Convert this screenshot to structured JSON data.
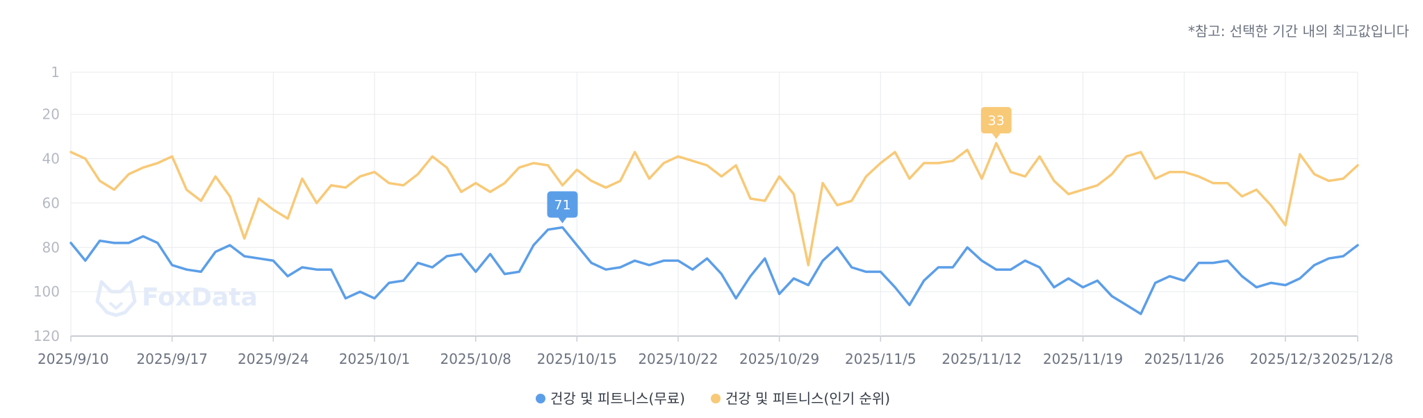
{
  "note": "*참고: 선택한 기간 내의 최고값입니다",
  "watermark": "FoxData",
  "colors": {
    "free": "#5b9ee8",
    "popular": "#f8c977",
    "grid": "#e8eaee",
    "axis": "#c9ccd3"
  },
  "chart_data": {
    "type": "line",
    "title": "",
    "xlabel": "",
    "ylabel": "",
    "y_axis": {
      "inverted": true,
      "min": 1,
      "max": 120,
      "ticks": [
        1,
        20,
        40,
        60,
        80,
        100,
        120
      ]
    },
    "x_tick_labels": [
      "2025/9/10",
      "2025/9/17",
      "2025/9/24",
      "2025/10/1",
      "2025/10/8",
      "2025/10/15",
      "2025/10/22",
      "2025/10/29",
      "2025/11/5",
      "2025/11/12",
      "2025/11/19",
      "2025/11/26",
      "2025/12/3",
      "2025/12/8"
    ],
    "x": [
      "2025/9/10",
      "2025/9/11",
      "2025/9/12",
      "2025/9/13",
      "2025/9/14",
      "2025/9/15",
      "2025/9/16",
      "2025/9/17",
      "2025/9/18",
      "2025/9/19",
      "2025/9/20",
      "2025/9/21",
      "2025/9/22",
      "2025/9/23",
      "2025/9/24",
      "2025/9/25",
      "2025/9/26",
      "2025/9/27",
      "2025/9/28",
      "2025/9/29",
      "2025/9/30",
      "2025/10/1",
      "2025/10/2",
      "2025/10/3",
      "2025/10/4",
      "2025/10/5",
      "2025/10/6",
      "2025/10/7",
      "2025/10/8",
      "2025/10/9",
      "2025/10/10",
      "2025/10/11",
      "2025/10/12",
      "2025/10/13",
      "2025/10/14",
      "2025/10/15",
      "2025/10/16",
      "2025/10/17",
      "2025/10/18",
      "2025/10/19",
      "2025/10/20",
      "2025/10/21",
      "2025/10/22",
      "2025/10/23",
      "2025/10/24",
      "2025/10/25",
      "2025/10/26",
      "2025/10/27",
      "2025/10/28",
      "2025/10/29",
      "2025/10/30",
      "2025/10/31",
      "2025/11/1",
      "2025/11/2",
      "2025/11/3",
      "2025/11/4",
      "2025/11/5",
      "2025/11/6",
      "2025/11/7",
      "2025/11/8",
      "2025/11/9",
      "2025/11/10",
      "2025/11/11",
      "2025/11/12",
      "2025/11/13",
      "2025/11/14",
      "2025/11/15",
      "2025/11/16",
      "2025/11/17",
      "2025/11/18",
      "2025/11/19",
      "2025/11/20",
      "2025/11/21",
      "2025/11/22",
      "2025/11/23",
      "2025/11/24",
      "2025/11/25",
      "2025/11/26",
      "2025/11/27",
      "2025/11/28",
      "2025/11/29",
      "2025/11/30",
      "2025/12/1",
      "2025/12/2",
      "2025/12/3",
      "2025/12/4",
      "2025/12/5",
      "2025/12/6",
      "2025/12/7",
      "2025/12/8"
    ],
    "series": [
      {
        "name": "건강 및 피트니스(무료)",
        "color": "#5b9ee8",
        "values": [
          78,
          86,
          77,
          78,
          78,
          75,
          78,
          88,
          90,
          91,
          82,
          79,
          84,
          85,
          86,
          93,
          89,
          90,
          90,
          103,
          100,
          103,
          96,
          95,
          87,
          89,
          84,
          83,
          91,
          83,
          92,
          91,
          79,
          72,
          71,
          79,
          87,
          90,
          89,
          86,
          88,
          86,
          86,
          90,
          85,
          92,
          103,
          93,
          85,
          101,
          94,
          97,
          86,
          80,
          89,
          91,
          91,
          98,
          106,
          95,
          89,
          89,
          80,
          86,
          90,
          90,
          86,
          89,
          98,
          94,
          98,
          95,
          102,
          106,
          110,
          96,
          93,
          95,
          87,
          87,
          86,
          93,
          98,
          96,
          97,
          94,
          88,
          85,
          84,
          79
        ],
        "peak": {
          "x": "2025/10/14",
          "value": 71,
          "label": "71"
        }
      },
      {
        "name": "건강 및 피트니스(인기 순위)",
        "color": "#f8c977",
        "values": [
          37,
          40,
          50,
          54,
          47,
          44,
          42,
          39,
          54,
          59,
          48,
          57,
          76,
          58,
          63,
          67,
          49,
          60,
          52,
          53,
          48,
          46,
          51,
          52,
          47,
          39,
          44,
          55,
          51,
          55,
          51,
          44,
          42,
          43,
          52,
          45,
          50,
          53,
          50,
          37,
          49,
          42,
          39,
          41,
          43,
          48,
          43,
          58,
          59,
          48,
          56,
          88,
          51,
          61,
          59,
          48,
          42,
          37,
          49,
          42,
          42,
          41,
          36,
          49,
          33,
          46,
          48,
          39,
          50,
          56,
          54,
          52,
          47,
          39,
          37,
          49,
          46,
          46,
          48,
          51,
          51,
          57,
          54,
          61,
          70,
          38,
          47,
          50,
          49,
          43
        ],
        "peak": {
          "x": "2025/11/13",
          "value": 33,
          "label": "33"
        }
      }
    ],
    "legend": {
      "position": "bottom-center",
      "entries": [
        "건강 및 피트니스(무료)",
        "건강 및 피트니스(인기 순위)"
      ]
    },
    "grid": true
  }
}
